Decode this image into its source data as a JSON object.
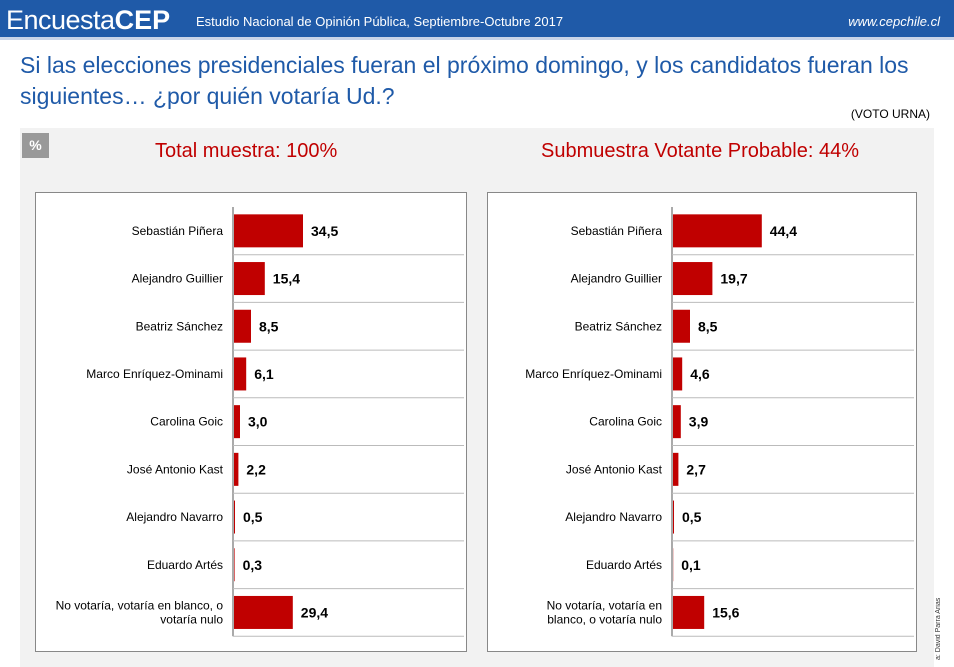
{
  "header": {
    "brand_light": "Encuesta",
    "brand_bold": "CEP",
    "study": "Estudio Nacional de Opinión Pública, Septiembre-Octubre 2017",
    "url": "www.cepchile.cl"
  },
  "question": {
    "text": "Si las elecciones presidenciales fueran el próximo domingo, y los candidatos fueran los siguientes… ¿por quién votaría Ud.?",
    "note": "(VOTO URNA)"
  },
  "badge": "%",
  "side_credit": "a: David Parra Arias",
  "colors": {
    "bar": "#c00000",
    "header": "#1f5aa8",
    "title": "#c00000",
    "question": "#1f5aa8"
  },
  "chart_data": [
    {
      "type": "bar",
      "orientation": "horizontal",
      "title": "Total muestra: 100%",
      "categories": [
        "Sebastián Piñera",
        "Alejandro Guillier",
        "Beatriz Sánchez",
        "Marco Enríquez-Ominami",
        "Carolina Goic",
        "José Antonio Kast",
        "Alejandro Navarro",
        "Eduardo Artés",
        "No votaría, votaría en blanco, o|votaría nulo"
      ],
      "values": [
        34.5,
        15.4,
        8.5,
        6.1,
        3.0,
        2.2,
        0.5,
        0.3,
        29.4
      ],
      "labels": [
        "34,5",
        "15,4",
        "8,5",
        "6,1",
        "3,0",
        "2,2",
        "0,5",
        "0,3",
        "29,4"
      ],
      "xlim": [
        0,
        100
      ],
      "grid": false
    },
    {
      "type": "bar",
      "orientation": "horizontal",
      "title": "Submuestra Votante Probable: 44%",
      "categories": [
        "Sebastián Piñera",
        "Alejandro Guillier",
        "Beatriz Sánchez",
        "Marco Enríquez-Ominami",
        "Carolina Goic",
        "José Antonio Kast",
        "Alejandro Navarro",
        "Eduardo Artés",
        "No votaría, votaría en|blanco, o votaría nulo"
      ],
      "values": [
        44.4,
        19.7,
        8.5,
        4.6,
        3.9,
        2.7,
        0.5,
        0.1,
        15.6
      ],
      "labels": [
        "44,4",
        "19,7",
        "8,5",
        "4,6",
        "3,9",
        "2,7",
        "0,5",
        "0,1",
        "15,6"
      ],
      "xlim": [
        0,
        100
      ],
      "grid": false
    }
  ]
}
